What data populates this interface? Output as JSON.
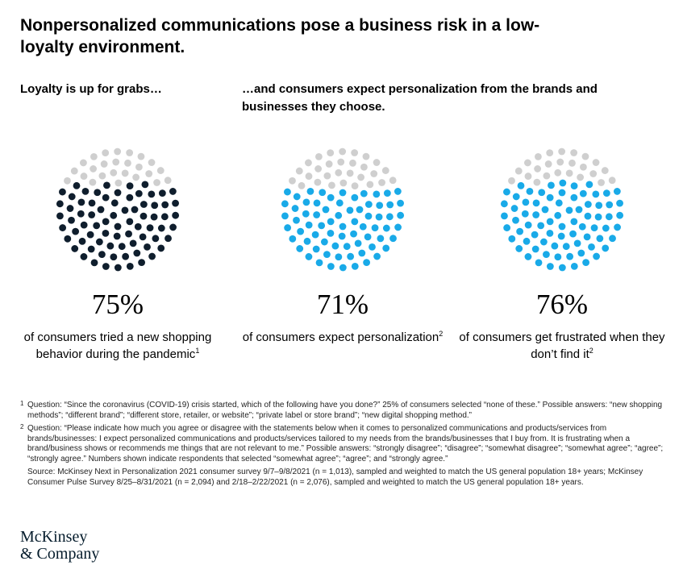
{
  "title": "Nonpersonalized communications pose a business risk in a low-loyalty environment.",
  "subhead_left": "Loyalty is up for grabs…",
  "subhead_right": "…and consumers expect personalization from the brands and businesses they choose.",
  "colors": {
    "inactive": "#cfcfcf",
    "navy": "#0f1e2d",
    "blue": "#19aae8"
  },
  "chart_data": [
    {
      "type": "dot-matrix",
      "value": 75,
      "stat": "75%",
      "caption": "of consumers tried a new shopping behavior during the pandemic",
      "footnote_ref": "1",
      "color": "#0f1e2d"
    },
    {
      "type": "dot-matrix",
      "value": 71,
      "stat": "71%",
      "caption": "of consumers expect personalization",
      "footnote_ref": "2",
      "color": "#19aae8"
    },
    {
      "type": "dot-matrix",
      "value": 76,
      "stat": "76%",
      "caption": "of consumers get frustrated when they don’t find it",
      "footnote_ref": "2",
      "color": "#19aae8"
    }
  ],
  "footnotes": [
    {
      "mark": "1",
      "text": "Question: “Since the coronavirus (COVID-19) crisis started, which of the following have you done?” 25% of consumers selected “none of these.” Possible answers: “new shopping methods”; “different brand”; “different store, retailer, or website”; “private label or store brand”; “new digital shopping method.”"
    },
    {
      "mark": "2",
      "text": "Question: “Please indicate how much you agree or disagree with the statements below when it comes to personalized communications and products/services from brands/businesses: I expect personalized communications and products/services tailored to my needs from the brands/businesses that I buy from. It is frustrating when a brand/business shows or recommends me things that are not relevant to me.” Possible answers: “strongly disagree”; “disagree”; “somewhat disagree”; “somewhat agree”; “agree”; “strongly agree.” Numbers shown indicate respondents that selected “somewhat agree”; “agree”; and “strongly agree.”"
    }
  ],
  "source": "Source: McKinsey Next in Personalization 2021 consumer survey 9/7–9/8/2021 (n = 1,013), sampled and weighted to match the US general population 18+ years; McKinsey Consumer Pulse Survey 8/25–8/31/2021 (n = 2,094) and 2/18–2/22/2021 (n = 2,076), sampled and weighted to match the US general population 18+ years.",
  "logo": {
    "line1": "McKinsey",
    "line2": "& Company"
  }
}
